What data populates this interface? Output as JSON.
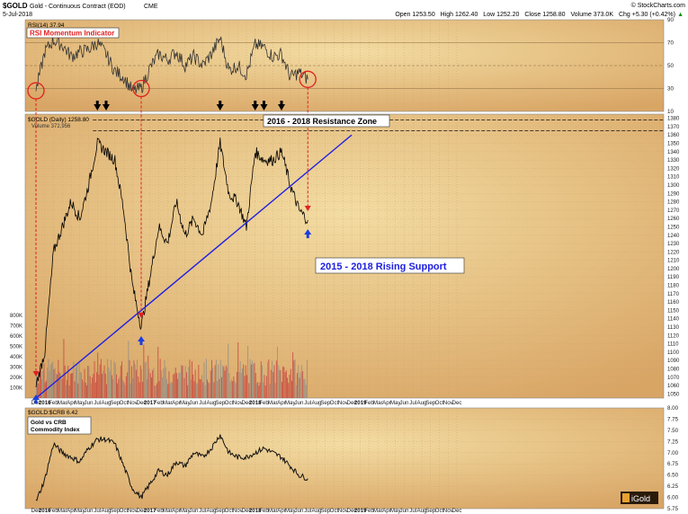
{
  "header": {
    "symbol": "$GOLD",
    "name": "Gold - Continuous Contract (EOD)",
    "exchange": "CME",
    "date": "5-Jul-2018",
    "credit": "© StockCharts.com",
    "open_label": "Open",
    "open": "1253.50",
    "high_label": "High",
    "high": "1262.40",
    "low_label": "Low",
    "low": "1252.20",
    "close_label": "Close",
    "close": "1258.80",
    "volume_label": "Volume",
    "volume": "373.0K",
    "chg_label": "Chg",
    "chg": "+5.30 (+0.42%)"
  },
  "colors": {
    "background": "#D8A565",
    "background_light": "#F3DCA2",
    "price_line": "#000000",
    "volume_bar": "#C53A3A",
    "annotation_red": "#E02020",
    "support_line": "#2020E0",
    "marker_black": "#000000",
    "marker_blue": "#1A3FE0"
  },
  "chart_data": [
    {
      "type": "line",
      "panel": "rsi",
      "label": "RSI(14) 37.94",
      "title": "RSI Momentum Indicator",
      "ylim": [
        10,
        90
      ],
      "y_ticks": [
        90,
        70,
        50,
        30,
        10
      ],
      "reference_lines": [
        70,
        50,
        30
      ],
      "x": [
        "Dec15",
        "Jan16",
        "Feb16",
        "Mar16",
        "Apr16",
        "May16",
        "Jun16",
        "Jul16",
        "Aug16",
        "Sep16",
        "Oct16",
        "Nov16",
        "Dec16",
        "Jan17",
        "Feb17",
        "Mar17",
        "Apr17",
        "May17",
        "Jun17",
        "Jul17",
        "Aug17",
        "Sep17",
        "Oct17",
        "Nov17",
        "Dec17",
        "Jan18",
        "Feb18",
        "Mar18",
        "Apr18",
        "May18",
        "Jun18",
        "Jul18"
      ],
      "values": [
        28,
        62,
        72,
        68,
        58,
        62,
        64,
        70,
        60,
        45,
        40,
        28,
        30,
        48,
        60,
        55,
        62,
        50,
        58,
        50,
        60,
        74,
        46,
        50,
        42,
        68,
        66,
        58,
        60,
        40,
        44,
        38
      ],
      "circle_markers": [
        "Dec15",
        "Dec16",
        "Jul18"
      ]
    },
    {
      "type": "line",
      "panel": "price",
      "label": "$GOLD (Daily) 1258.80",
      "volume_label": "Volume 372,956",
      "ylim": [
        1045,
        1385
      ],
      "y_ticks": [
        1380,
        1370,
        1360,
        1350,
        1340,
        1330,
        1320,
        1310,
        1300,
        1290,
        1280,
        1270,
        1260,
        1250,
        1240,
        1230,
        1220,
        1210,
        1200,
        1190,
        1180,
        1170,
        1160,
        1150,
        1140,
        1130,
        1120,
        1110,
        1100,
        1090,
        1080,
        1070,
        1060,
        1050
      ],
      "x": [
        "Dec15",
        "Jan16",
        "Feb16",
        "Mar16",
        "Apr16",
        "May16",
        "Jun16",
        "Jul16",
        "Aug16",
        "Sep16",
        "Oct16",
        "Nov16",
        "Dec16",
        "Jan17",
        "Feb17",
        "Mar17",
        "Apr17",
        "May17",
        "Jun17",
        "Jul17",
        "Aug17",
        "Sep17",
        "Oct17",
        "Nov17",
        "Dec17",
        "Jan18",
        "Feb18",
        "Mar18",
        "Apr18",
        "May18",
        "Jun18",
        "Jul18"
      ],
      "values": [
        1060,
        1100,
        1220,
        1250,
        1280,
        1260,
        1300,
        1350,
        1340,
        1330,
        1270,
        1180,
        1130,
        1190,
        1250,
        1230,
        1280,
        1240,
        1260,
        1240,
        1280,
        1350,
        1290,
        1280,
        1250,
        1340,
        1330,
        1330,
        1340,
        1300,
        1270,
        1258
      ],
      "resistance": {
        "label": "2016 - 2018 Resistance Zone",
        "levels": [
          1365,
          1378
        ]
      },
      "support": {
        "label": "2015 - 2018 Rising Support",
        "from": {
          "x": "Dec15",
          "y": 1045
        },
        "to": {
          "x": "Dec18",
          "y": 1360
        }
      },
      "down_arrows": [
        "Jul16",
        "Aug16",
        "Sep17",
        "Jan18",
        "Feb18",
        "Apr18"
      ],
      "up_arrows": [
        "Dec15",
        "Dec16",
        "Jul18"
      ]
    },
    {
      "type": "bar",
      "panel": "volume",
      "y_ticks": [
        "800K",
        "700K",
        "600K",
        "500K",
        "400K",
        "300K",
        "200K",
        "100K"
      ],
      "ylim": [
        0,
        850
      ]
    },
    {
      "type": "line",
      "panel": "ratio",
      "label": "$GOLD:$CRB 6.42",
      "title": "Gold vs CRB\nCommodity Index",
      "ylim": [
        5.75,
        8.0
      ],
      "y_ticks": [
        "8.00",
        "7.75",
        "7.50",
        "7.25",
        "7.00",
        "6.75",
        "6.50",
        "6.25",
        "6.00",
        "5.75"
      ],
      "x": [
        "Dec15",
        "Jan16",
        "Feb16",
        "Mar16",
        "Apr16",
        "May16",
        "Jun16",
        "Jul16",
        "Aug16",
        "Sep16",
        "Oct16",
        "Nov16",
        "Dec16",
        "Jan17",
        "Feb17",
        "Mar17",
        "Apr17",
        "May17",
        "Jun17",
        "Jul17",
        "Aug17",
        "Sep17",
        "Oct17",
        "Nov17",
        "Dec17",
        "Jan18",
        "Feb18",
        "Mar18",
        "Apr18",
        "May18",
        "Jun18",
        "Jul18"
      ],
      "values": [
        5.9,
        6.4,
        7.2,
        7.0,
        6.9,
        6.8,
        7.1,
        7.3,
        7.3,
        7.2,
        6.7,
        6.2,
        6.0,
        6.3,
        6.6,
        6.5,
        6.8,
        6.7,
        7.0,
        6.9,
        7.1,
        7.4,
        7.0,
        6.9,
        6.9,
        7.0,
        7.1,
        7.0,
        6.9,
        6.7,
        6.5,
        6.42
      ]
    }
  ],
  "x_axis": {
    "labels": [
      "Dec",
      "2016",
      "Feb",
      "Mar",
      "Apr",
      "May",
      "Jun",
      "Jul",
      "Aug",
      "Sep",
      "Oct",
      "Nov",
      "Dec",
      "2017",
      "Feb",
      "Mar",
      "Apr",
      "May",
      "Jun",
      "Jul",
      "Aug",
      "Sep",
      "Oct",
      "Nov",
      "Dec",
      "2018",
      "Feb",
      "Mar",
      "Apr",
      "May",
      "Jun",
      "Jul",
      "Aug",
      "Sep",
      "Oct",
      "Nov",
      "Dec",
      "2019",
      "Feb",
      "Mar",
      "Apr",
      "May",
      "Jun",
      "Jul",
      "Aug",
      "Sep",
      "Oct",
      "Nov",
      "Dec"
    ],
    "bold": [
      "2016",
      "2017",
      "2018",
      "2019"
    ]
  },
  "logo": {
    "text": "iGold"
  }
}
